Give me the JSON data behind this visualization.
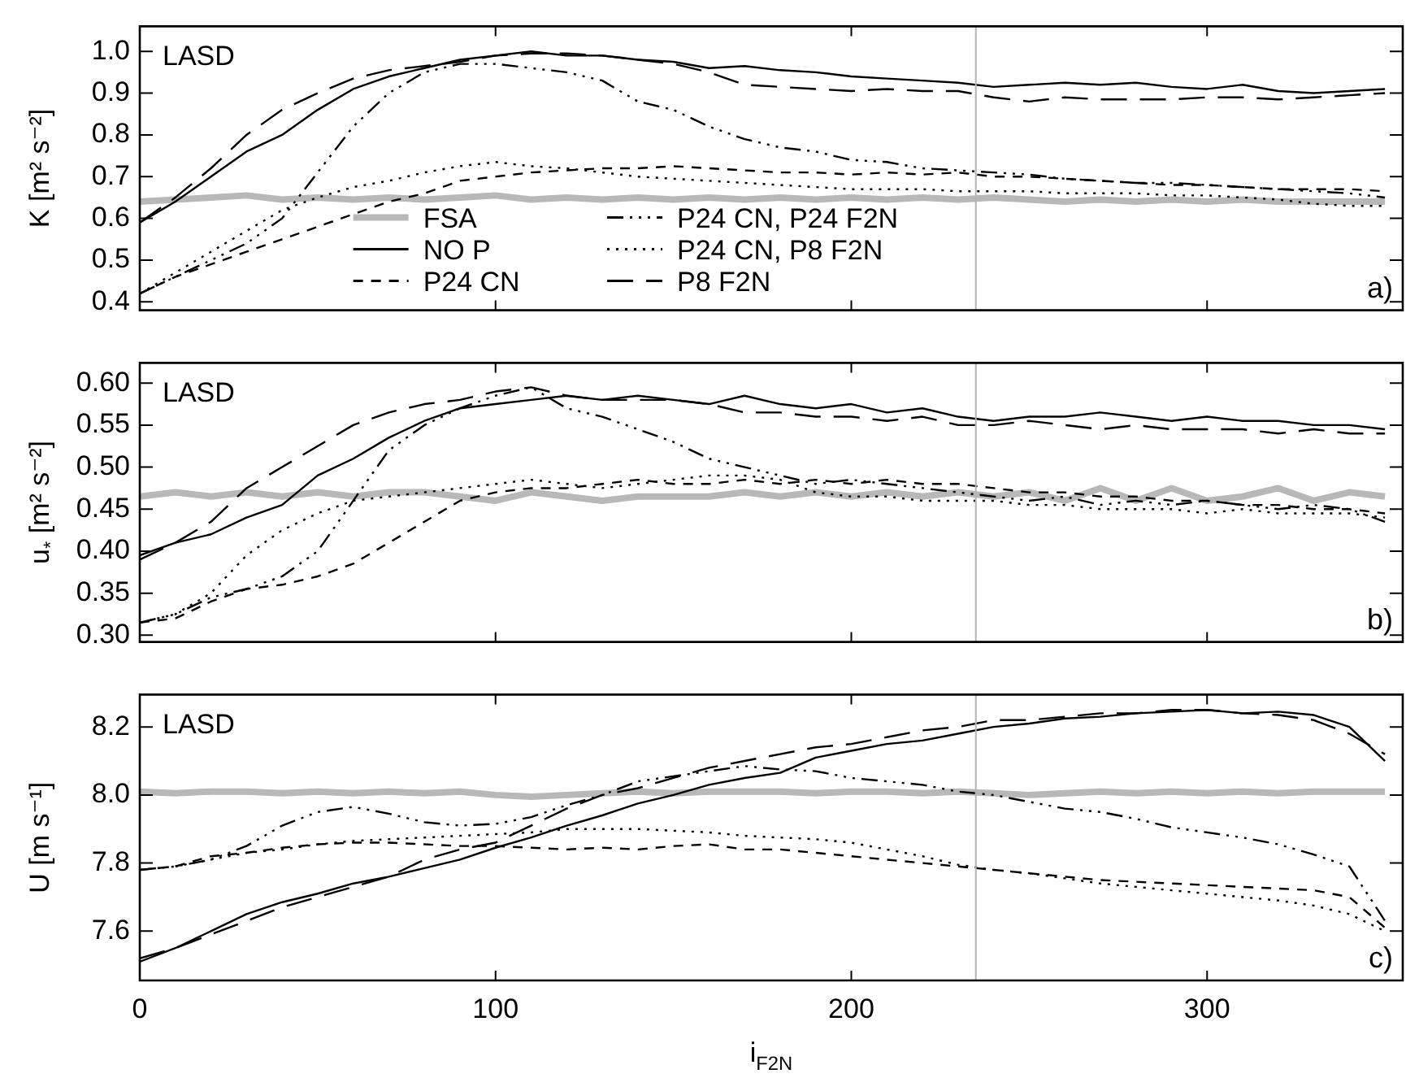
{
  "chart_data": [
    {
      "type": "line",
      "ylabel": "K [m² s⁻²]",
      "annotations": [
        "LASD",
        "a)"
      ],
      "xlim": [
        0,
        355
      ],
      "xticks": [
        0,
        100,
        200,
        300
      ],
      "ylim": [
        0.38,
        1.06
      ],
      "yticks": [
        0.4,
        0.5,
        0.6,
        0.7,
        0.8,
        0.9,
        {
          "value": 1,
          "label": "1.0"
        }
      ],
      "tick_labels": "y",
      "grid": false,
      "legend": "bottom",
      "marker": "none",
      "ref_lines": [
        {
          "axis": "x",
          "value": 235,
          "color": "#b4b4b4"
        }
      ],
      "x": [
        0,
        10,
        20,
        30,
        40,
        50,
        60,
        70,
        80,
        90,
        100,
        110,
        120,
        130,
        140,
        150,
        160,
        170,
        180,
        190,
        200,
        210,
        220,
        230,
        240,
        250,
        260,
        270,
        280,
        290,
        300,
        310,
        320,
        330,
        340,
        350
      ],
      "series": [
        {
          "name": "FSA",
          "color": "#b8b8b8",
          "line_style": "solid",
          "values": [
            0.64,
            0.645,
            0.65,
            0.655,
            0.645,
            0.65,
            0.645,
            0.65,
            0.645,
            0.65,
            0.655,
            0.645,
            0.65,
            0.645,
            0.65,
            0.645,
            0.65,
            0.645,
            0.65,
            0.645,
            0.65,
            0.645,
            0.65,
            0.645,
            0.65,
            0.645,
            0.64,
            0.645,
            0.64,
            0.645,
            0.64,
            0.645,
            0.64,
            0.64,
            0.64,
            0.64
          ]
        },
        {
          "name": "NO P",
          "color": "#000000",
          "line_style": "solid",
          "values": [
            0.59,
            0.64,
            0.7,
            0.76,
            0.8,
            0.86,
            0.91,
            0.94,
            0.96,
            0.98,
            0.99,
            1.0,
            0.99,
            0.99,
            0.98,
            0.975,
            0.96,
            0.965,
            0.955,
            0.95,
            0.94,
            0.935,
            0.93,
            0.925,
            0.915,
            0.92,
            0.925,
            0.92,
            0.925,
            0.915,
            0.91,
            0.92,
            0.905,
            0.9,
            0.905,
            0.91
          ]
        },
        {
          "name": "P24 CN",
          "color": "#000000",
          "line_style": "dashed",
          "values": [
            0.42,
            0.46,
            0.49,
            0.52,
            0.55,
            0.58,
            0.61,
            0.64,
            0.66,
            0.69,
            0.7,
            0.71,
            0.715,
            0.72,
            0.72,
            0.725,
            0.72,
            0.715,
            0.71,
            0.71,
            0.705,
            0.71,
            0.705,
            0.71,
            0.7,
            0.7,
            0.695,
            0.69,
            0.685,
            0.68,
            0.68,
            0.675,
            0.67,
            0.67,
            0.67,
            0.665
          ]
        },
        {
          "name": "P24 CN, P24 F2N",
          "color": "#000000",
          "line_style": "dashdotdot",
          "values": [
            0.42,
            0.46,
            0.5,
            0.54,
            0.6,
            0.71,
            0.82,
            0.9,
            0.95,
            0.97,
            0.97,
            0.96,
            0.95,
            0.93,
            0.88,
            0.86,
            0.82,
            0.79,
            0.77,
            0.76,
            0.74,
            0.735,
            0.72,
            0.715,
            0.71,
            0.705,
            0.695,
            0.69,
            0.685,
            0.685,
            0.68,
            0.675,
            0.67,
            0.665,
            0.66,
            0.65
          ]
        },
        {
          "name": "P24 CN, P8 F2N",
          "color": "#000000",
          "line_style": "dotted",
          "values": [
            0.42,
            0.47,
            0.52,
            0.57,
            0.62,
            0.65,
            0.675,
            0.69,
            0.71,
            0.725,
            0.735,
            0.725,
            0.72,
            0.71,
            0.7,
            0.695,
            0.69,
            0.685,
            0.68,
            0.675,
            0.67,
            0.67,
            0.67,
            0.665,
            0.665,
            0.665,
            0.66,
            0.66,
            0.66,
            0.655,
            0.655,
            0.65,
            0.645,
            0.635,
            0.63,
            0.63
          ]
        },
        {
          "name": "P8 F2N",
          "color": "#000000",
          "line_style": "longdashed",
          "values": [
            0.59,
            0.65,
            0.72,
            0.8,
            0.86,
            0.9,
            0.935,
            0.955,
            0.965,
            0.975,
            0.99,
            0.995,
            0.995,
            0.99,
            0.98,
            0.97,
            0.95,
            0.92,
            0.915,
            0.91,
            0.905,
            0.91,
            0.905,
            0.905,
            0.89,
            0.88,
            0.89,
            0.885,
            0.885,
            0.885,
            0.89,
            0.89,
            0.885,
            0.89,
            0.895,
            0.9
          ]
        }
      ]
    },
    {
      "type": "line",
      "ylabel": "u$_{*}$ [m² s⁻²]",
      "annotations": [
        "LASD",
        "b)"
      ],
      "xlim": [
        0,
        355
      ],
      "xticks": [
        0,
        100,
        200,
        300
      ],
      "ylim": [
        0.292,
        0.624
      ],
      "yticks": [
        {
          "value": 0.3,
          "label": "0.30"
        },
        0.35,
        {
          "value": 0.4,
          "label": "0.40"
        },
        0.45,
        {
          "value": 0.5,
          "label": "0.50"
        },
        0.55,
        {
          "value": 0.6,
          "label": "0.60"
        }
      ],
      "tick_labels": "y",
      "grid": false,
      "marker": "none",
      "ref_lines": [
        {
          "axis": "x",
          "value": 235,
          "color": "#b4b4b4"
        }
      ],
      "x": [
        0,
        10,
        20,
        30,
        40,
        50,
        60,
        70,
        80,
        90,
        100,
        110,
        120,
        130,
        140,
        150,
        160,
        170,
        180,
        190,
        200,
        210,
        220,
        230,
        240,
        250,
        260,
        270,
        280,
        290,
        300,
        310,
        320,
        330,
        340,
        350
      ],
      "series": [
        {
          "color": "#b8b8b8",
          "line_style": "solid",
          "values": [
            0.465,
            0.47,
            0.465,
            0.47,
            0.465,
            0.47,
            0.465,
            0.47,
            0.47,
            0.465,
            0.46,
            0.47,
            0.465,
            0.46,
            0.465,
            0.465,
            0.465,
            0.47,
            0.465,
            0.47,
            0.465,
            0.47,
            0.465,
            0.47,
            0.465,
            0.47,
            0.46,
            0.475,
            0.46,
            0.475,
            0.46,
            0.465,
            0.475,
            0.46,
            0.47,
            0.465
          ]
        },
        {
          "color": "#000000",
          "line_style": "solid",
          "values": [
            0.395,
            0.41,
            0.42,
            0.44,
            0.455,
            0.49,
            0.51,
            0.535,
            0.555,
            0.57,
            0.575,
            0.58,
            0.585,
            0.58,
            0.585,
            0.58,
            0.575,
            0.585,
            0.575,
            0.57,
            0.575,
            0.565,
            0.57,
            0.56,
            0.555,
            0.56,
            0.56,
            0.565,
            0.56,
            0.555,
            0.56,
            0.555,
            0.555,
            0.55,
            0.55,
            0.545
          ]
        },
        {
          "color": "#000000",
          "line_style": "dashed",
          "values": [
            0.315,
            0.32,
            0.34,
            0.355,
            0.36,
            0.37,
            0.385,
            0.41,
            0.435,
            0.46,
            0.47,
            0.475,
            0.475,
            0.48,
            0.485,
            0.48,
            0.48,
            0.485,
            0.48,
            0.485,
            0.48,
            0.485,
            0.48,
            0.48,
            0.475,
            0.47,
            0.47,
            0.465,
            0.465,
            0.46,
            0.46,
            0.455,
            0.455,
            0.45,
            0.45,
            0.445
          ]
        },
        {
          "color": "#000000",
          "line_style": "dashdotdot",
          "values": [
            0.315,
            0.325,
            0.345,
            0.355,
            0.37,
            0.4,
            0.46,
            0.52,
            0.55,
            0.57,
            0.585,
            0.595,
            0.57,
            0.56,
            0.545,
            0.53,
            0.51,
            0.5,
            0.49,
            0.48,
            0.485,
            0.48,
            0.475,
            0.47,
            0.465,
            0.46,
            0.465,
            0.455,
            0.46,
            0.455,
            0.46,
            0.455,
            0.45,
            0.455,
            0.45,
            0.435
          ]
        },
        {
          "color": "#000000",
          "line_style": "dotted",
          "values": [
            0.315,
            0.325,
            0.35,
            0.395,
            0.425,
            0.445,
            0.46,
            0.465,
            0.47,
            0.475,
            0.48,
            0.485,
            0.48,
            0.475,
            0.48,
            0.485,
            0.49,
            0.49,
            0.485,
            0.47,
            0.465,
            0.465,
            0.46,
            0.46,
            0.46,
            0.455,
            0.455,
            0.45,
            0.45,
            0.45,
            0.445,
            0.45,
            0.445,
            0.445,
            0.445,
            0.44
          ]
        },
        {
          "color": "#000000",
          "line_style": "longdashed",
          "values": [
            0.39,
            0.41,
            0.435,
            0.475,
            0.5,
            0.525,
            0.55,
            0.565,
            0.575,
            0.58,
            0.59,
            0.595,
            0.585,
            0.58,
            0.58,
            0.58,
            0.575,
            0.565,
            0.565,
            0.56,
            0.56,
            0.555,
            0.56,
            0.55,
            0.55,
            0.555,
            0.55,
            0.545,
            0.55,
            0.545,
            0.545,
            0.545,
            0.54,
            0.545,
            0.54,
            0.54
          ]
        }
      ]
    },
    {
      "type": "line",
      "ylabel": "U [m s⁻¹]",
      "xlabel": "i$_{F2N}$",
      "annotations": [
        "LASD",
        "c)"
      ],
      "xlim": [
        0,
        355
      ],
      "xticks": [
        0,
        100,
        200,
        300
      ],
      "ylim": [
        7.455,
        8.295
      ],
      "yticks": [
        7.6,
        7.8,
        {
          "value": 8,
          "label": "8.0"
        },
        8.2
      ],
      "grid": false,
      "marker": "none",
      "ref_lines": [
        {
          "axis": "x",
          "value": 235,
          "color": "#b4b4b4"
        }
      ],
      "x": [
        0,
        10,
        20,
        30,
        40,
        50,
        60,
        70,
        80,
        90,
        100,
        110,
        120,
        130,
        140,
        150,
        160,
        170,
        180,
        190,
        200,
        210,
        220,
        230,
        240,
        250,
        260,
        270,
        280,
        290,
        300,
        310,
        320,
        330,
        340,
        350
      ],
      "series": [
        {
          "color": "#b8b8b8",
          "line_style": "solid",
          "values": [
            8.01,
            8.005,
            8.01,
            8.01,
            8.005,
            8.01,
            8.005,
            8.01,
            8.005,
            8.01,
            8.0,
            7.995,
            8.0,
            8.005,
            8.01,
            8.005,
            8.01,
            8.01,
            8.01,
            8.005,
            8.01,
            8.01,
            8.005,
            8.01,
            8.005,
            8.0,
            8.005,
            8.01,
            8.005,
            8.01,
            8.005,
            8.01,
            8.005,
            8.01,
            8.01,
            8.01
          ]
        },
        {
          "color": "#000000",
          "line_style": "solid",
          "values": [
            7.51,
            7.55,
            7.6,
            7.65,
            7.685,
            7.71,
            7.74,
            7.76,
            7.785,
            7.81,
            7.845,
            7.875,
            7.91,
            7.94,
            7.975,
            8.0,
            8.03,
            8.05,
            8.065,
            8.11,
            8.13,
            8.15,
            8.16,
            8.18,
            8.2,
            8.21,
            8.225,
            8.23,
            8.24,
            8.245,
            8.25,
            8.24,
            8.245,
            8.235,
            8.2,
            8.1
          ]
        },
        {
          "color": "#000000",
          "line_style": "dashed",
          "values": [
            7.78,
            7.79,
            7.82,
            7.83,
            7.845,
            7.855,
            7.86,
            7.86,
            7.855,
            7.85,
            7.85,
            7.845,
            7.84,
            7.845,
            7.84,
            7.85,
            7.855,
            7.84,
            7.84,
            7.83,
            7.82,
            7.81,
            7.8,
            7.79,
            7.78,
            7.77,
            7.76,
            7.75,
            7.745,
            7.74,
            7.735,
            7.73,
            7.725,
            7.72,
            7.7,
            7.61
          ]
        },
        {
          "color": "#000000",
          "line_style": "dashdotdot",
          "values": [
            7.78,
            7.79,
            7.81,
            7.85,
            7.91,
            7.95,
            7.965,
            7.945,
            7.92,
            7.91,
            7.915,
            7.935,
            7.97,
            8.0,
            8.04,
            8.055,
            8.07,
            8.085,
            8.075,
            8.07,
            8.05,
            8.04,
            8.03,
            8.01,
            8.0,
            7.98,
            7.96,
            7.95,
            7.93,
            7.905,
            7.89,
            7.875,
            7.855,
            7.825,
            7.79,
            7.63
          ]
        },
        {
          "color": "#000000",
          "line_style": "dotted",
          "values": [
            7.78,
            7.79,
            7.81,
            7.83,
            7.84,
            7.855,
            7.865,
            7.87,
            7.875,
            7.88,
            7.885,
            7.89,
            7.9,
            7.9,
            7.9,
            7.895,
            7.89,
            7.88,
            7.875,
            7.87,
            7.86,
            7.84,
            7.82,
            7.795,
            7.78,
            7.77,
            7.755,
            7.74,
            7.73,
            7.72,
            7.71,
            7.7,
            7.69,
            7.675,
            7.65,
            7.6
          ]
        },
        {
          "color": "#000000",
          "line_style": "longdashed",
          "values": [
            7.52,
            7.55,
            7.59,
            7.63,
            7.67,
            7.7,
            7.73,
            7.76,
            7.81,
            7.84,
            7.86,
            7.91,
            7.96,
            8.0,
            8.02,
            8.05,
            8.08,
            8.1,
            8.12,
            8.14,
            8.15,
            8.17,
            8.19,
            8.2,
            8.22,
            8.22,
            8.23,
            8.24,
            8.24,
            8.25,
            8.25,
            8.24,
            8.235,
            8.22,
            8.18,
            8.12
          ]
        }
      ]
    }
  ]
}
